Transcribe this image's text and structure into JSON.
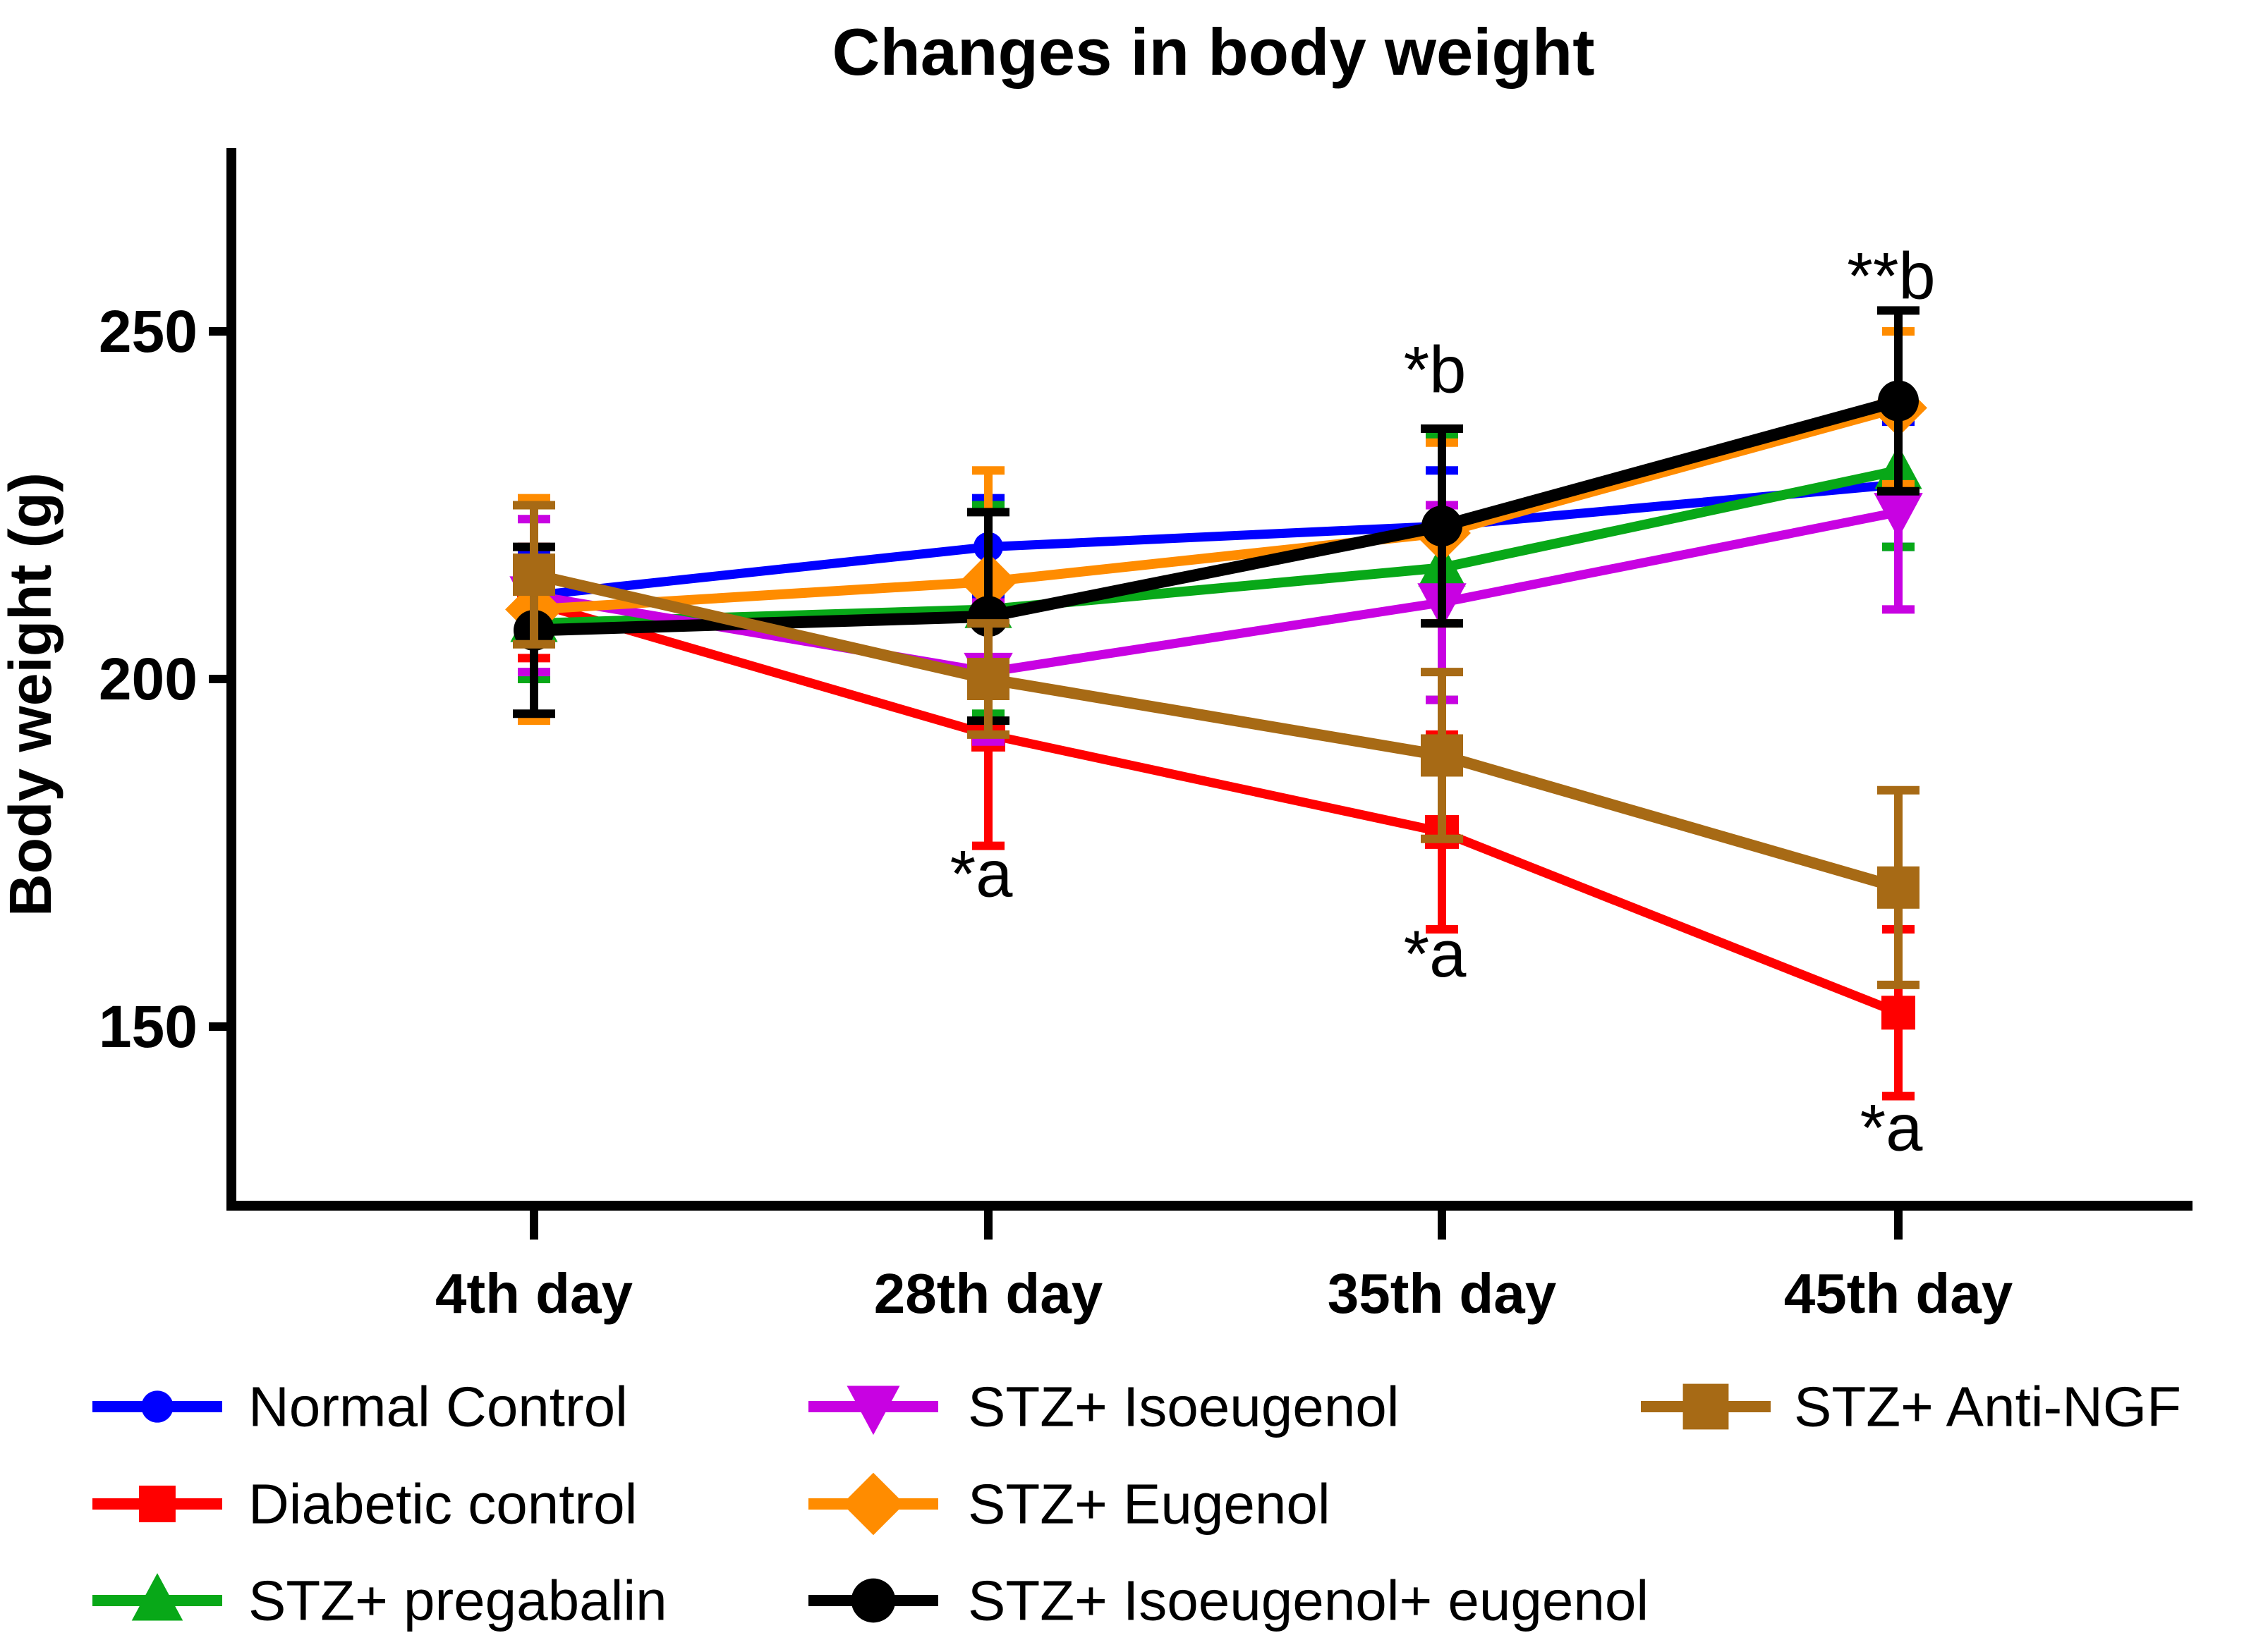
{
  "title": "Changes in body weight",
  "axes": {
    "y_label": "Body weight (g)",
    "y_ticks": [
      250,
      200,
      150
    ],
    "x_labels": [
      "4th day",
      "28th day",
      "35th day",
      "45th day"
    ]
  },
  "colors": {
    "normal_control": "#0000FF",
    "diabetic_control": "#FF0000",
    "stz_pregabalin": "#08A818",
    "stz_isoeugenol": "#C802E2",
    "stz_eugenol": "#FF8C00",
    "stz_isoeugenol_eugenol": "#000000",
    "stz_anti_ngf": "#A76A15",
    "axis": "#000000",
    "background": "#FFFFFF"
  },
  "chart_data": {
    "type": "line",
    "title": "Changes in body weight",
    "xlabel": "",
    "ylabel": "Body weight (g)",
    "categories": [
      "4th day",
      "28th day",
      "35th day",
      "45th day"
    ],
    "ylim": [
      120,
      278
    ],
    "y_ticks": [
      250,
      200,
      150
    ],
    "grid": false,
    "legend_position": "bottom",
    "error_bars": true,
    "series": [
      {
        "name": "Normal Control",
        "color": "#0000FF",
        "marker": "circle",
        "values": [
          212,
          219,
          222,
          228
        ],
        "errors": [
          6,
          7,
          8,
          9
        ]
      },
      {
        "name": "Diabetic control",
        "color": "#FF0000",
        "marker": "square",
        "values": [
          211,
          192,
          178,
          152
        ],
        "errors": [
          8,
          16,
          14,
          12
        ]
      },
      {
        "name": "STZ+ pregabalin",
        "color": "#08A818",
        "marker": "triangle-up",
        "values": [
          208,
          210,
          216,
          230
        ],
        "errors": [
          8,
          15,
          19,
          11
        ]
      },
      {
        "name": "STZ+ Isoeugenol",
        "color": "#C802E2",
        "marker": "triangle-down",
        "values": [
          212,
          201,
          211,
          224
        ],
        "errors": [
          11,
          10,
          14,
          14
        ]
      },
      {
        "name": "STZ+ Eugenol",
        "color": "#FF8C00",
        "marker": "diamond",
        "values": [
          210,
          214,
          221,
          239
        ],
        "errors": [
          16,
          16,
          13,
          11
        ]
      },
      {
        "name": "STZ+ Isoeugenol+ eugenol",
        "color": "#000000",
        "marker": "circle",
        "values": [
          207,
          209,
          222,
          240
        ],
        "errors": [
          12,
          15,
          14,
          13
        ]
      },
      {
        "name": "STZ+ Anti-NGF",
        "color": "#A76A15",
        "marker": "square",
        "values": [
          215,
          200,
          189,
          170
        ],
        "errors": [
          10,
          8,
          12,
          14
        ]
      }
    ],
    "annotations": [
      {
        "text": "*a",
        "category": "28th day",
        "y": 172
      },
      {
        "text": "*b",
        "category": "35th day",
        "y": 244.5
      },
      {
        "text": "*a",
        "category": "35th day",
        "y": 160.5
      },
      {
        "text": "**b",
        "category": "45th day",
        "y": 258
      },
      {
        "text": "*a",
        "category": "45th day",
        "y": 135.5
      }
    ]
  }
}
